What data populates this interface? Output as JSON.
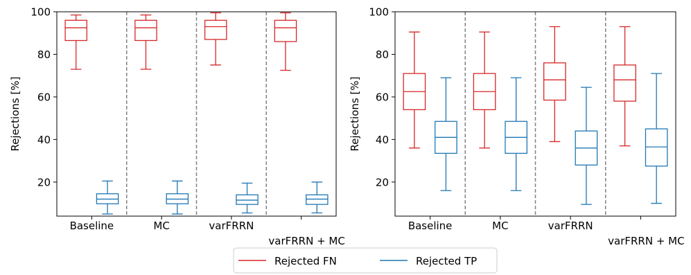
{
  "chart_data": [
    {
      "type": "box",
      "title": "",
      "xlabel": "",
      "ylabel": "Rejections [%]",
      "ylim": [
        0,
        100
      ],
      "yticks": [
        20,
        40,
        60,
        80,
        100
      ],
      "grid": false,
      "categories": [
        "Baseline",
        "MC",
        "varFRRN",
        "varFRRN + MC"
      ],
      "series": [
        {
          "name": "Rejected FN",
          "color": "#d62728",
          "boxes": [
            {
              "whislo": 73,
              "q1": 86.5,
              "med": 92.5,
              "q3": 96,
              "whishi": 98.5
            },
            {
              "whislo": 73,
              "q1": 86.5,
              "med": 92.5,
              "q3": 96,
              "whishi": 98.5
            },
            {
              "whislo": 75,
              "q1": 87,
              "med": 93,
              "q3": 96,
              "whishi": 99.5
            },
            {
              "whislo": 72.5,
              "q1": 86,
              "med": 92.5,
              "q3": 96,
              "whishi": 99.5
            }
          ]
        },
        {
          "name": "Rejected TP",
          "color": "#1f77b4",
          "boxes": [
            {
              "whislo": 5,
              "q1": 9.8,
              "med": 12,
              "q3": 14.5,
              "whishi": 20.5
            },
            {
              "whislo": 5,
              "q1": 9.8,
              "med": 12,
              "q3": 14.5,
              "whishi": 20.5
            },
            {
              "whislo": 5.5,
              "q1": 9.5,
              "med": 11.5,
              "q3": 14,
              "whishi": 19.5
            },
            {
              "whislo": 5.5,
              "q1": 9.5,
              "med": 12,
              "q3": 14,
              "whishi": 20
            }
          ]
        }
      ]
    },
    {
      "type": "box",
      "title": "",
      "xlabel": "",
      "ylabel": "Rejections [%]",
      "ylim": [
        0,
        100
      ],
      "yticks": [
        20,
        40,
        60,
        80,
        100
      ],
      "grid": false,
      "categories": [
        "Baseline",
        "MC",
        "varFRRN",
        "varFRRN + MC"
      ],
      "series": [
        {
          "name": "Rejected FN",
          "color": "#d62728",
          "boxes": [
            {
              "whislo": 36,
              "q1": 54,
              "med": 62.5,
              "q3": 71,
              "whishi": 90.5
            },
            {
              "whislo": 36,
              "q1": 54,
              "med": 62.5,
              "q3": 71,
              "whishi": 90.5
            },
            {
              "whislo": 39,
              "q1": 58.5,
              "med": 68,
              "q3": 76,
              "whishi": 93
            },
            {
              "whislo": 37,
              "q1": 58,
              "med": 68,
              "q3": 75,
              "whishi": 93
            }
          ]
        },
        {
          "name": "Rejected TP",
          "color": "#1f77b4",
          "boxes": [
            {
              "whislo": 16,
              "q1": 33.5,
              "med": 41,
              "q3": 48.5,
              "whishi": 69
            },
            {
              "whislo": 16,
              "q1": 33.5,
              "med": 41,
              "q3": 48.5,
              "whishi": 69
            },
            {
              "whislo": 9.5,
              "q1": 28,
              "med": 36,
              "q3": 44,
              "whishi": 64.5
            },
            {
              "whislo": 10,
              "q1": 27.5,
              "med": 36.5,
              "q3": 45,
              "whishi": 71
            }
          ]
        }
      ]
    }
  ],
  "legend": {
    "placement": "bottom-center",
    "items": [
      {
        "label": "Rejected FN",
        "color": "#d62728"
      },
      {
        "label": "Rejected TP",
        "color": "#1f77b4"
      }
    ]
  }
}
